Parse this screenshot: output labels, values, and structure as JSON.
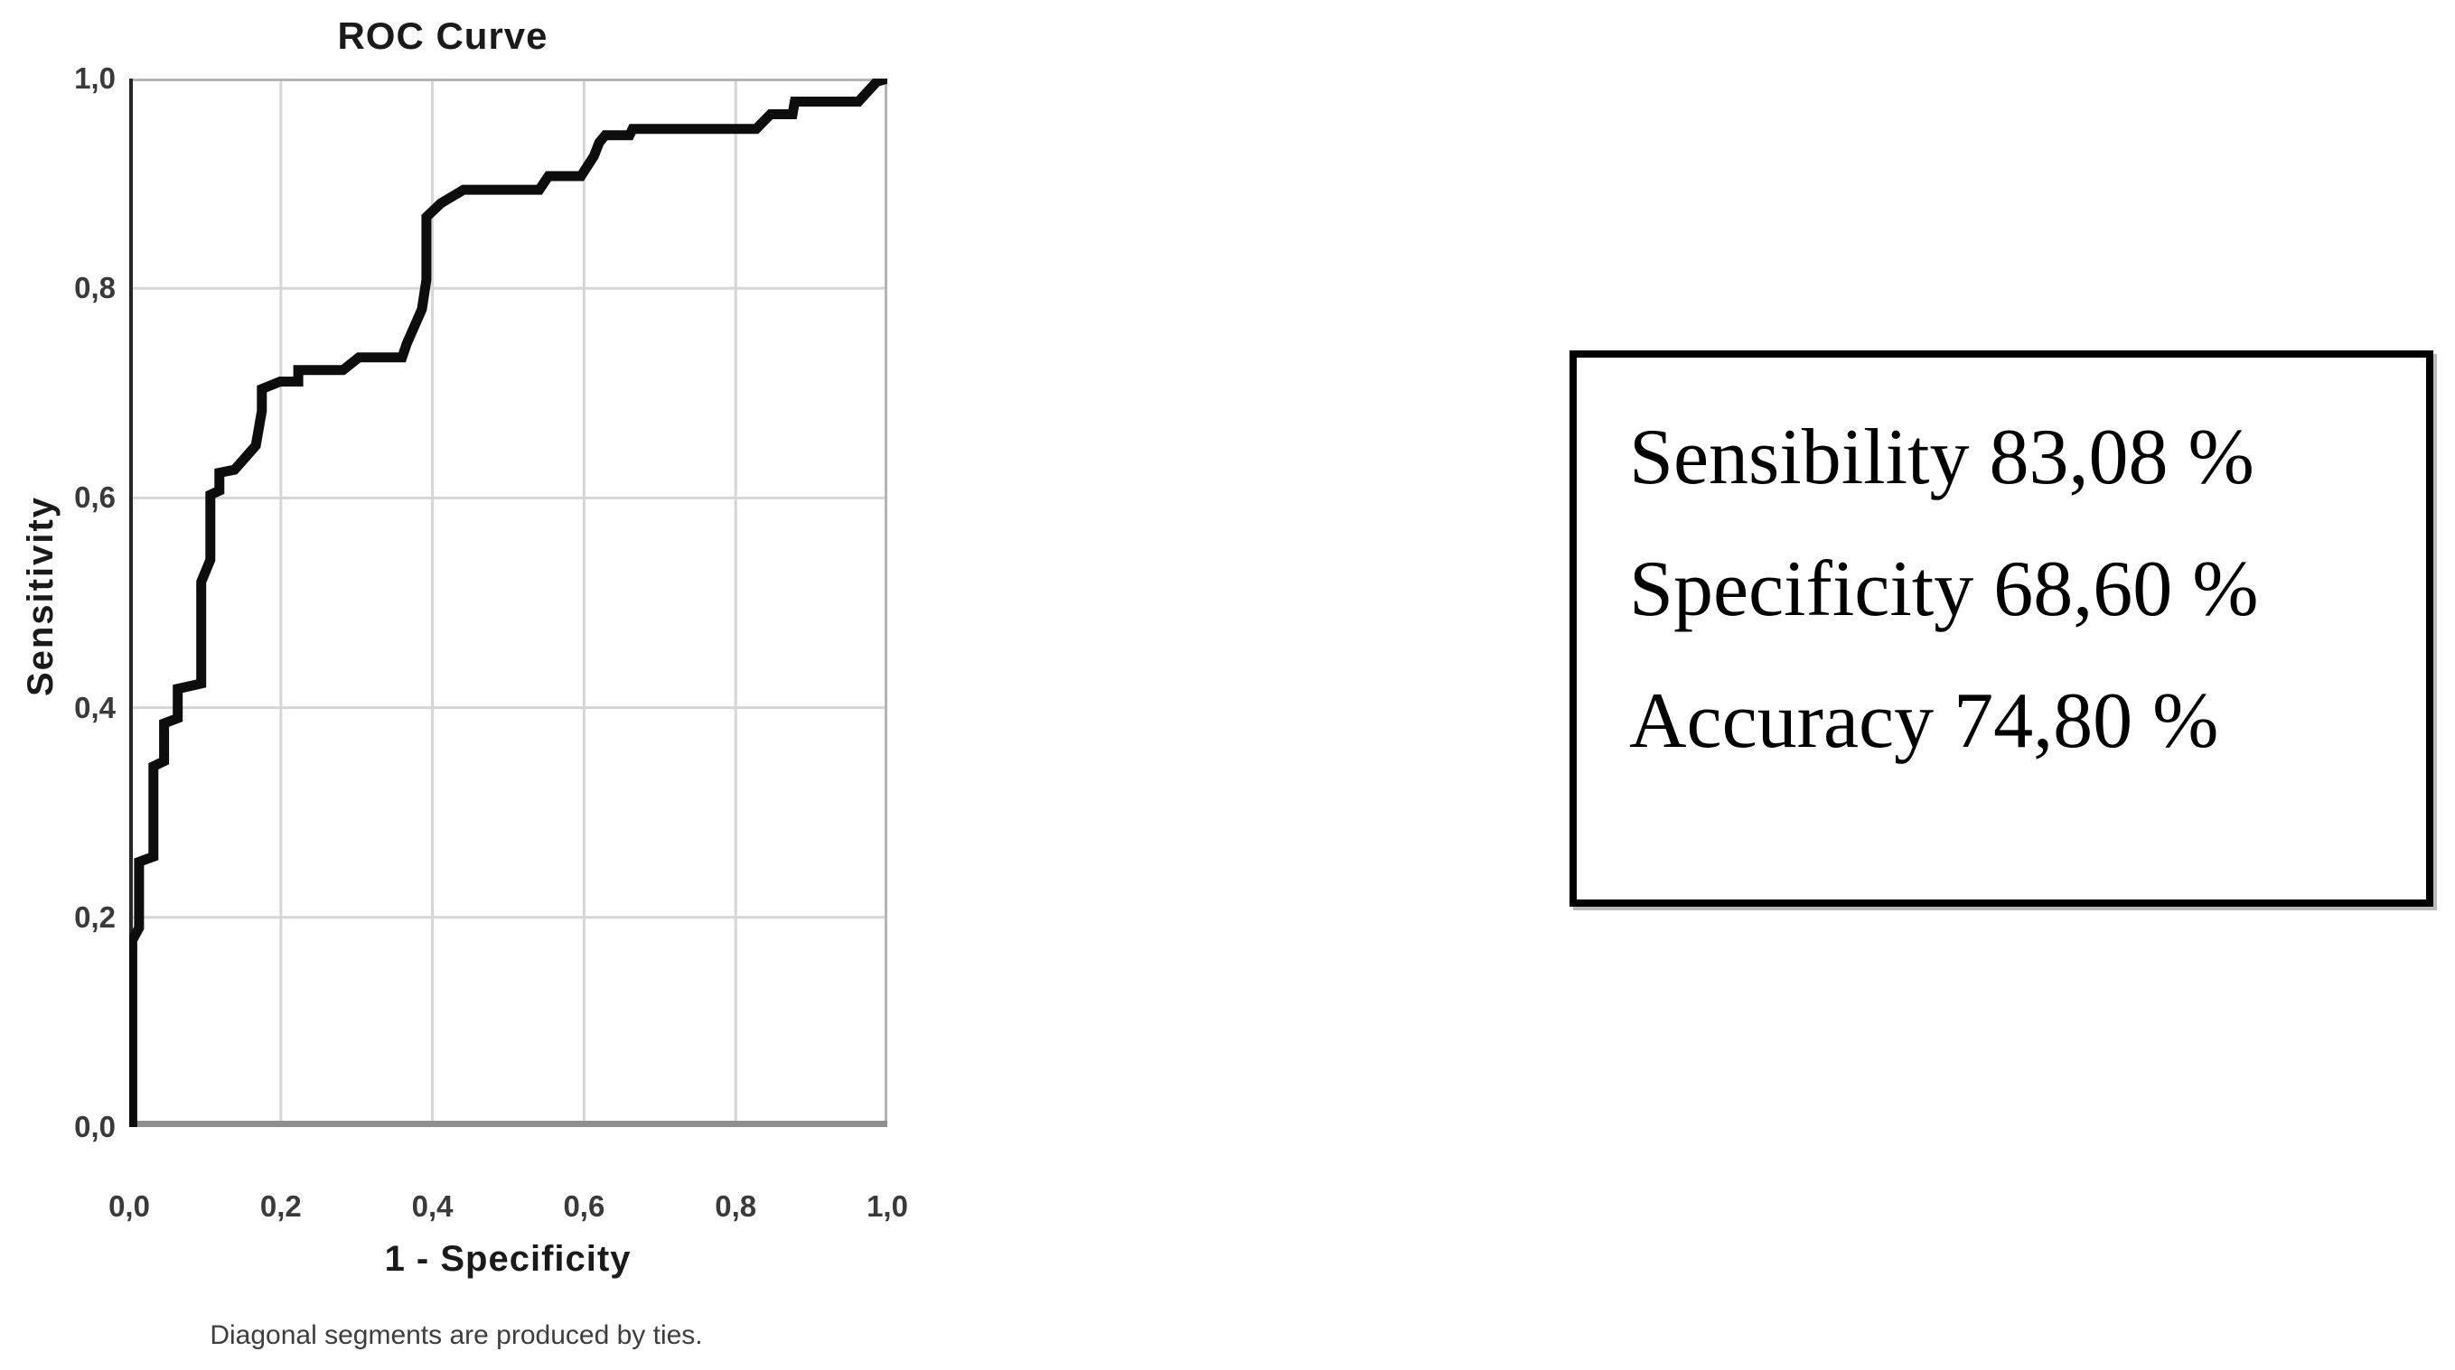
{
  "chart": {
    "title": "ROC Curve",
    "x_axis": {
      "label": "1 - Specificity"
    },
    "y_axis": {
      "label": "Sensitivity"
    },
    "footnote": "Diagonal segments are produced by ties."
  },
  "chart_data": {
    "type": "line",
    "title": "ROC Curve",
    "xlabel": "1 - Specificity",
    "ylabel": "Sensitivity",
    "xlim": [
      0,
      1
    ],
    "ylim": [
      0,
      1
    ],
    "grid": true,
    "legend": "none",
    "x_ticks": [
      0.0,
      0.2,
      0.4,
      0.6,
      0.8,
      1.0
    ],
    "y_ticks": [
      0.0,
      0.2,
      0.4,
      0.6,
      0.8,
      1.0
    ],
    "x_tick_labels": [
      "0,0",
      "0,2",
      "0,4",
      "0,6",
      "0,8",
      "1,0"
    ],
    "y_tick_labels": [
      "0,0",
      "0,2",
      "0,4",
      "0,6",
      "0,8",
      "1,0"
    ],
    "series": [
      {
        "name": "ROC step curve",
        "points": [
          [
            0.004,
            0.0
          ],
          [
            0.004,
            0.178
          ],
          [
            0.013,
            0.19
          ],
          [
            0.013,
            0.253
          ],
          [
            0.032,
            0.258
          ],
          [
            0.032,
            0.344
          ],
          [
            0.046,
            0.349
          ],
          [
            0.046,
            0.385
          ],
          [
            0.064,
            0.39
          ],
          [
            0.064,
            0.418
          ],
          [
            0.095,
            0.423
          ],
          [
            0.095,
            0.52
          ],
          [
            0.107,
            0.541
          ],
          [
            0.107,
            0.603
          ],
          [
            0.119,
            0.607
          ],
          [
            0.119,
            0.624
          ],
          [
            0.139,
            0.627
          ],
          [
            0.167,
            0.65
          ],
          [
            0.175,
            0.683
          ],
          [
            0.175,
            0.704
          ],
          [
            0.199,
            0.711
          ],
          [
            0.223,
            0.711
          ],
          [
            0.223,
            0.722
          ],
          [
            0.282,
            0.722
          ],
          [
            0.303,
            0.734
          ],
          [
            0.36,
            0.734
          ],
          [
            0.366,
            0.747
          ],
          [
            0.386,
            0.78
          ],
          [
            0.392,
            0.808
          ],
          [
            0.392,
            0.868
          ],
          [
            0.411,
            0.881
          ],
          [
            0.441,
            0.894
          ],
          [
            0.541,
            0.894
          ],
          [
            0.553,
            0.907
          ],
          [
            0.596,
            0.907
          ],
          [
            0.613,
            0.926
          ],
          [
            0.62,
            0.939
          ],
          [
            0.628,
            0.946
          ],
          [
            0.66,
            0.946
          ],
          [
            0.664,
            0.952
          ],
          [
            0.827,
            0.952
          ],
          [
            0.846,
            0.966
          ],
          [
            0.875,
            0.966
          ],
          [
            0.878,
            0.978
          ],
          [
            0.962,
            0.978
          ],
          [
            0.986,
            0.997
          ],
          [
            1.0,
            1.0
          ]
        ]
      }
    ]
  },
  "stats_box": {
    "lines": [
      {
        "label": "Sensibility",
        "value": "83,08 %"
      },
      {
        "label": "Specificity",
        "value": "68,60 %"
      },
      {
        "label": "Accuracy",
        "value": "74,80 %"
      }
    ]
  },
  "colors": {
    "curve": "#0d0d0d",
    "grid": "#d6d6d6",
    "frame": "#b5b5b5",
    "axis_bottom": "#8f8f8f",
    "axis_left": "#262626",
    "text": "#1a1a1a",
    "box_border": "#000000",
    "background": "#ffffff"
  }
}
